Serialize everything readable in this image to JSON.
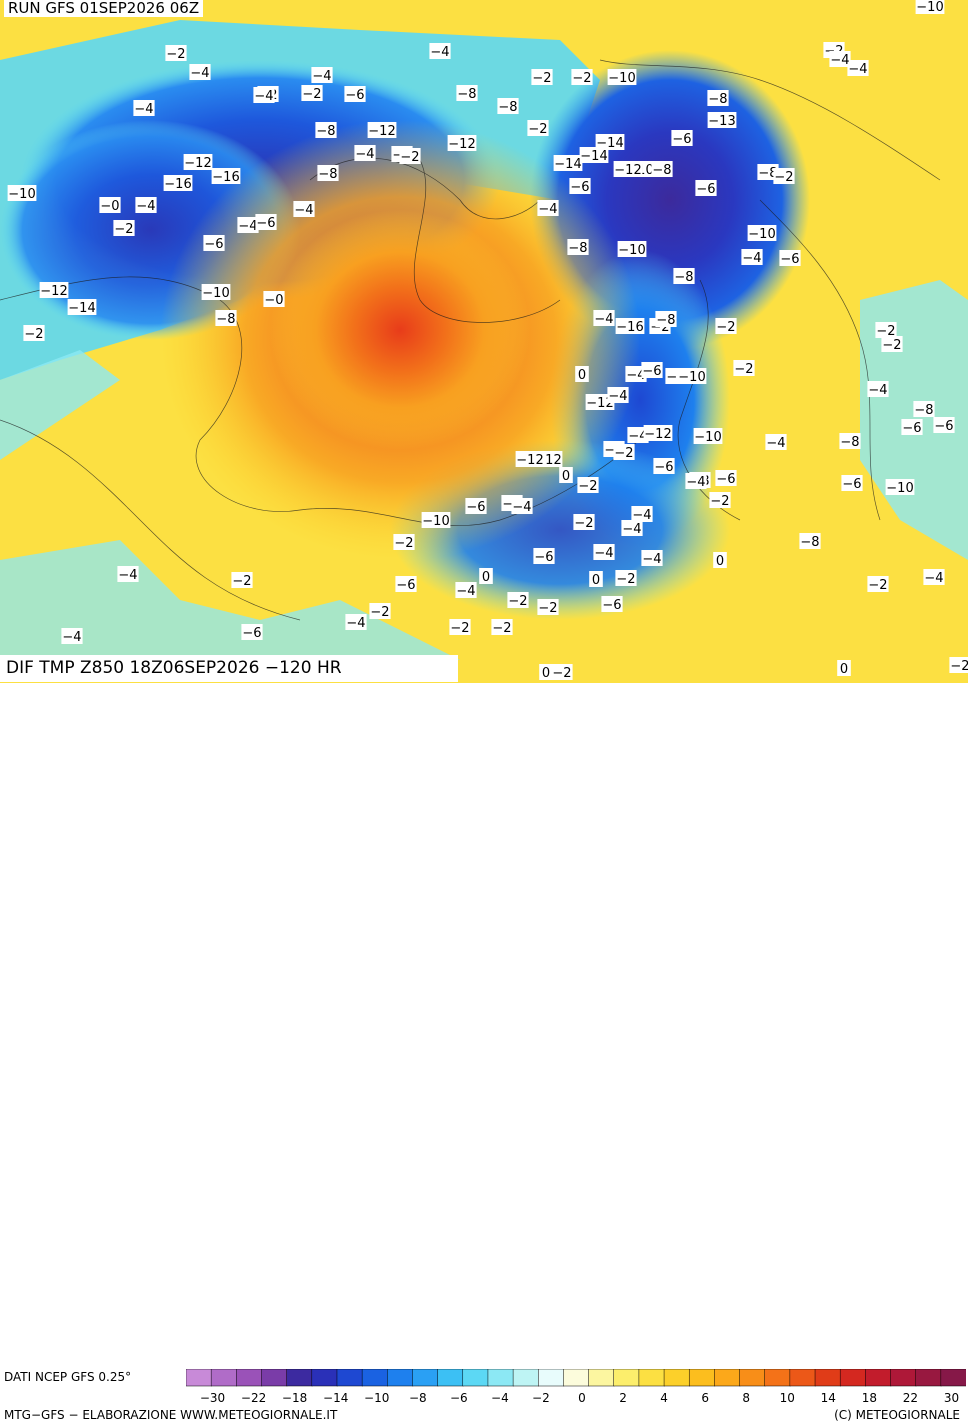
{
  "run_title": "RUN GFS 01SEP2026 06Z",
  "param_title": "DIF TMP Z850 18Z06SEP2026 −120 HR",
  "source": "DATI NCEP GFS 0.25°",
  "credits": "MTG−GFS − ELABORAZIONE WWW.METEOGIORNALE.IT",
  "copyright": "(C) METEOGIORNALE",
  "legend": {
    "ticks": [
      "−30",
      "−22",
      "−18",
      "−14",
      "−10",
      "−8",
      "−6",
      "−4",
      "−2",
      "0",
      "2",
      "4",
      "6",
      "8",
      "10",
      "14",
      "18",
      "22",
      "30"
    ],
    "colors": [
      "#c88ad8",
      "#b06cc8",
      "#9a52b8",
      "#7a3ca8",
      "#3c2aa0",
      "#2a30b8",
      "#1e48d2",
      "#1a62e2",
      "#1e80ee",
      "#2aa0f4",
      "#3cc0f4",
      "#5cd8f4",
      "#8ce8f4",
      "#bef4f4",
      "#e8fcfc",
      "#fcfcdc",
      "#fcf6a0",
      "#fcee6c",
      "#fce042",
      "#fcd02a",
      "#fcbe1e",
      "#fca81a",
      "#f88e18",
      "#f47218",
      "#ec5818",
      "#e03c18",
      "#d42820",
      "#c21c2c",
      "#ae1838",
      "#981840",
      "#861848"
    ]
  },
  "anomaly_labels": [
    "-10",
    "-2",
    "-4",
    "-2",
    "-4",
    "-4",
    "-4",
    "-2",
    "-6",
    "-4",
    "-2",
    "-2",
    "-10",
    "-8",
    "-8",
    "-2",
    "-8",
    "-13",
    "-8",
    "-12",
    "-14",
    "-6",
    "-4",
    "-6",
    "-12",
    "-14",
    "-14",
    "-10",
    "-2",
    "-8",
    "-6",
    "-12",
    "-8",
    "-6",
    "-8",
    "-2",
    "-10",
    "-16",
    "-16",
    "-12",
    "-0",
    "-4",
    "-2",
    "-6",
    "-4",
    "-6",
    "-4",
    "-4",
    "-8",
    "-10",
    "-10",
    "-8",
    "-4",
    "-6",
    "-14",
    "-12",
    "-10",
    "-8",
    "-0",
    "-4",
    "-2",
    "-16",
    "-8",
    "-2",
    "-2",
    "-4",
    "-6",
    "-2",
    "-10",
    "-12",
    "-4",
    "0",
    "-2",
    "-2",
    "-2",
    "-4",
    "-8",
    "-6",
    "-6",
    "-4",
    "-12",
    "-10",
    "-8",
    "-4",
    "-4",
    "-6",
    "-2",
    "-2",
    "0",
    "-12",
    "-12",
    "-6",
    "-4",
    "-6",
    "-10",
    "-2",
    "-4",
    "-4",
    "-2",
    "-6",
    "-8",
    "-4",
    "-6",
    "-10",
    "-8",
    "-2",
    "-6",
    "-4",
    "-4",
    "0",
    "0",
    "0",
    "-2",
    "-6",
    "-6",
    "-4",
    "-2",
    "-2",
    "-4",
    "-4",
    "-2",
    "-2",
    "-2",
    "-4",
    "-6",
    "-4",
    "-2",
    "-2",
    "0",
    "-2",
    "0",
    "-2",
    "-2",
    "-4",
    "-4"
  ]
}
